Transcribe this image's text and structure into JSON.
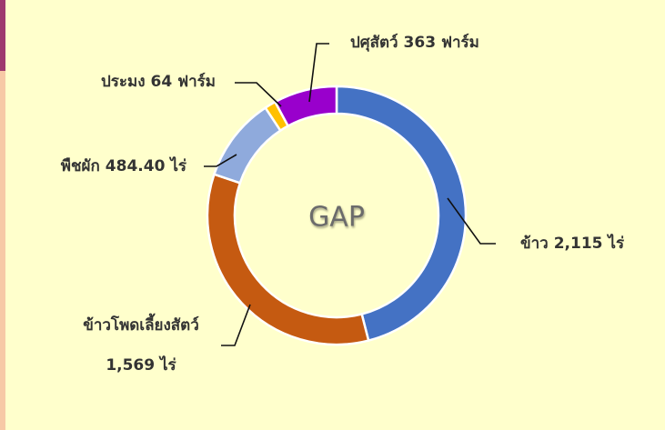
{
  "chart_data": {
    "type": "donut",
    "title": "GAP",
    "categories": [
      "ข้าว",
      "ข้าวโพดเลี้ยงสัตว์",
      "พืชผัก",
      "ประมง",
      "ปศุสัตว์"
    ],
    "values": [
      2115,
      1569,
      484.4,
      64,
      363
    ],
    "value_labels": [
      "2,115 ไร่",
      "1,569 ไร่",
      "484.40 ไร่",
      "64 ฟาร์ม",
      "363 ฟาร์ม"
    ],
    "colors": [
      "#4472c4",
      "#c55a11",
      "#8faadc",
      "#ffc000",
      "#9900cc"
    ]
  }
}
